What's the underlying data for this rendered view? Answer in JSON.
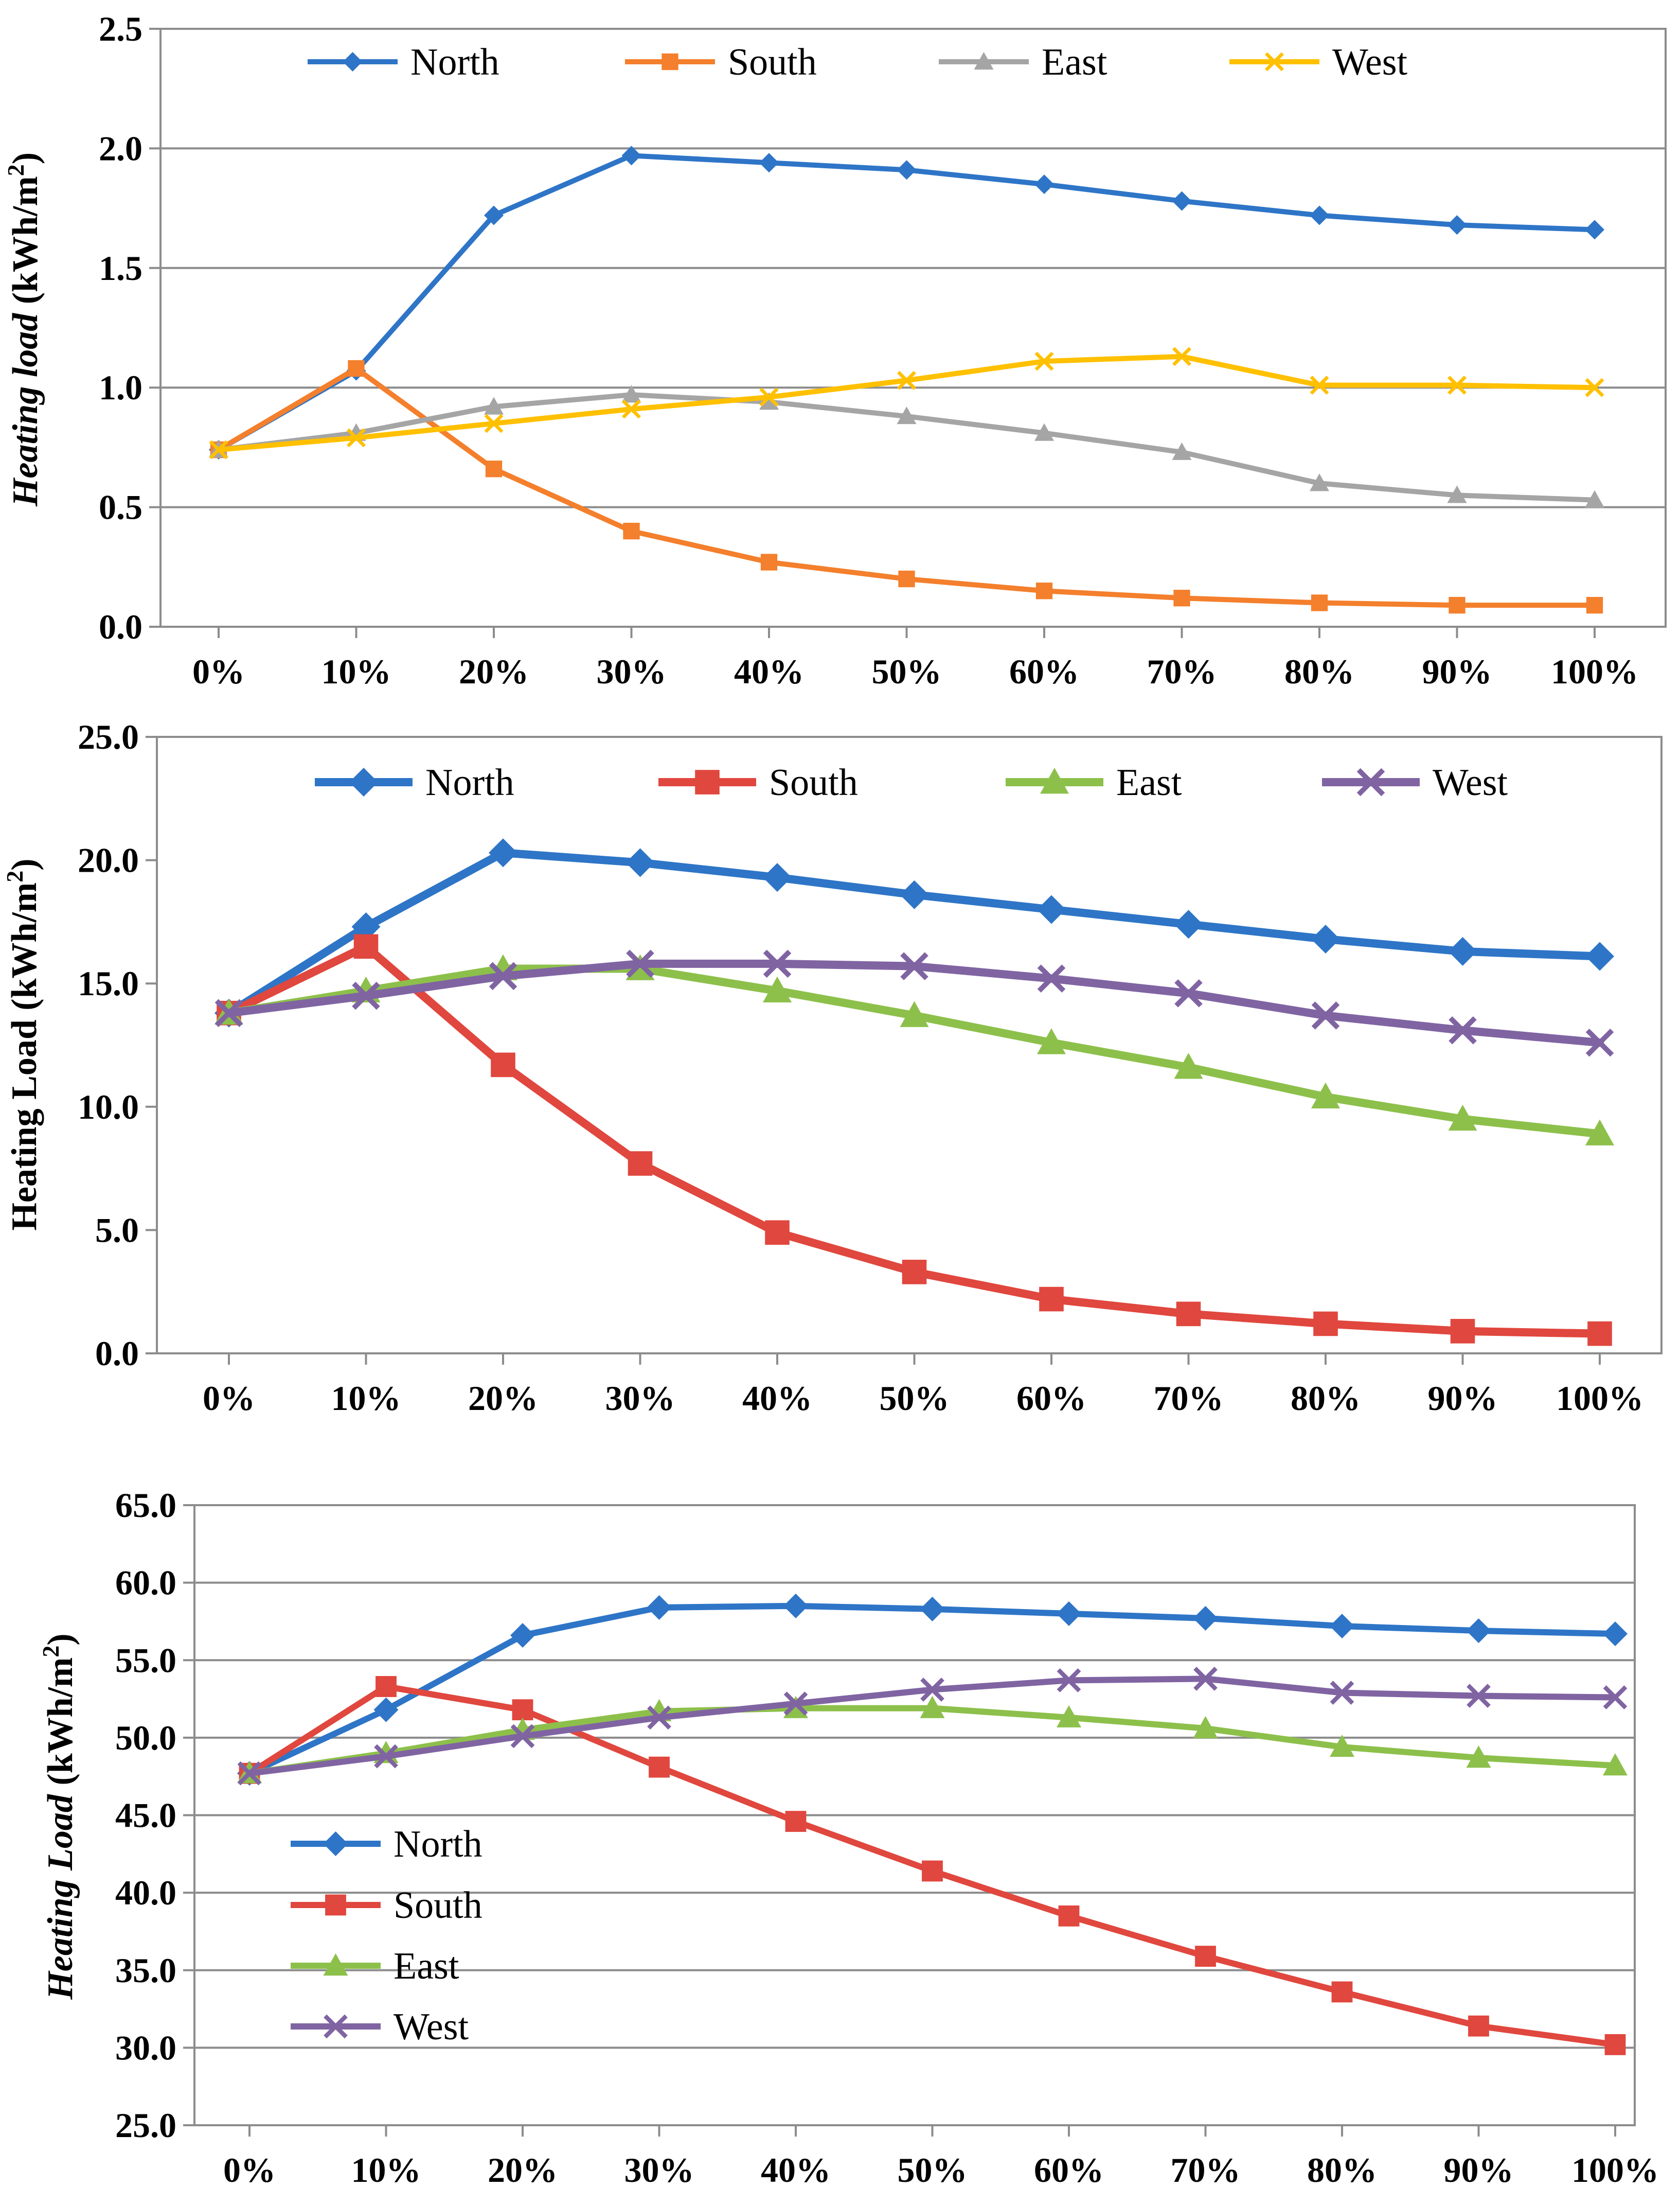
{
  "chart_data": [
    {
      "type": "line",
      "title": "",
      "xlabel": "",
      "ylabel": "Heating load (kWh/m²)",
      "ylabel_parts": {
        "italic": "Heating load",
        "unit": " (kWh/m",
        "sup": "2",
        "close": ")"
      },
      "ylim": [
        0,
        2.5
      ],
      "y_ticks": [
        "0.0",
        "0.5",
        "1.0",
        "1.5",
        "2.0",
        "2.5"
      ],
      "categories": [
        "0%",
        "10%",
        "20%",
        "30%",
        "40%",
        "50%",
        "60%",
        "70%",
        "80%",
        "90%",
        "100%"
      ],
      "grid": true,
      "legend": "top",
      "series": [
        {
          "name": "North",
          "color": "#2E75C7",
          "marker": "diamond",
          "values": [
            0.74,
            1.07,
            1.72,
            1.97,
            1.94,
            1.91,
            1.85,
            1.78,
            1.72,
            1.68,
            1.66
          ]
        },
        {
          "name": "South",
          "color": "#F47F2C",
          "marker": "square",
          "values": [
            0.74,
            1.08,
            0.66,
            0.4,
            0.27,
            0.2,
            0.15,
            0.12,
            0.1,
            0.09,
            0.09
          ]
        },
        {
          "name": "East",
          "color": "#A5A5A5",
          "marker": "triangle",
          "values": [
            0.74,
            0.81,
            0.92,
            0.97,
            0.94,
            0.88,
            0.81,
            0.73,
            0.6,
            0.55,
            0.53
          ]
        },
        {
          "name": "West",
          "color": "#FFC000",
          "marker": "x",
          "values": [
            0.74,
            0.79,
            0.85,
            0.91,
            0.96,
            1.03,
            1.11,
            1.13,
            1.01,
            1.01,
            1.0
          ]
        }
      ]
    },
    {
      "type": "line",
      "title": "",
      "xlabel": "",
      "ylabel": "Heating Load (kWh/m²)",
      "ylabel_parts": {
        "italic": "",
        "unit": "Heating Load (kWh/m",
        "sup": "2",
        "close": ")"
      },
      "ylim": [
        0,
        25
      ],
      "y_ticks": [
        "0.0",
        "5.0",
        "10.0",
        "15.0",
        "20.0",
        "25.0"
      ],
      "categories": [
        "0%",
        "10%",
        "20%",
        "30%",
        "40%",
        "50%",
        "60%",
        "70%",
        "80%",
        "90%",
        "100%"
      ],
      "grid": false,
      "legend": "top",
      "series": [
        {
          "name": "North",
          "color": "#2E75C7",
          "marker": "diamond",
          "values": [
            13.8,
            17.3,
            20.3,
            19.9,
            19.3,
            18.6,
            18.0,
            17.4,
            16.8,
            16.3,
            16.1
          ]
        },
        {
          "name": "South",
          "color": "#E0473E",
          "marker": "square",
          "values": [
            13.8,
            16.5,
            11.7,
            7.7,
            4.9,
            3.3,
            2.2,
            1.6,
            1.2,
            0.9,
            0.8
          ]
        },
        {
          "name": "East",
          "color": "#8DC04B",
          "marker": "triangle",
          "values": [
            13.8,
            14.7,
            15.6,
            15.6,
            14.7,
            13.7,
            12.6,
            11.6,
            10.4,
            9.5,
            8.9
          ]
        },
        {
          "name": "West",
          "color": "#8064A2",
          "marker": "x",
          "values": [
            13.8,
            14.5,
            15.3,
            15.8,
            15.8,
            15.7,
            15.2,
            14.6,
            13.7,
            13.1,
            12.6
          ]
        }
      ]
    },
    {
      "type": "line",
      "title": "",
      "xlabel": "",
      "ylabel": "Heating Load (kWh/m²)",
      "ylabel_parts": {
        "italic": "Heating Load",
        "unit": " (kWh/m",
        "sup": "2",
        "close": ")"
      },
      "ylim": [
        25,
        65
      ],
      "y_ticks": [
        "25.0",
        "30.0",
        "35.0",
        "40.0",
        "45.0",
        "50.0",
        "55.0",
        "60.0",
        "65.0"
      ],
      "categories": [
        "0%",
        "10%",
        "20%",
        "30%",
        "40%",
        "50%",
        "60%",
        "70%",
        "80%",
        "90%",
        "100%"
      ],
      "grid": true,
      "legend": "left",
      "series": [
        {
          "name": "North",
          "color": "#2E75C7",
          "marker": "diamond",
          "values": [
            47.7,
            51.8,
            56.6,
            58.4,
            58.5,
            58.3,
            58.0,
            57.7,
            57.2,
            56.9,
            56.7
          ]
        },
        {
          "name": "South",
          "color": "#E0473E",
          "marker": "square",
          "values": [
            47.7,
            53.3,
            51.8,
            48.1,
            44.6,
            41.4,
            38.5,
            35.9,
            33.6,
            31.4,
            30.2
          ]
        },
        {
          "name": "East",
          "color": "#8DC04B",
          "marker": "triangle",
          "values": [
            47.7,
            49.0,
            50.5,
            51.7,
            51.9,
            51.9,
            51.3,
            50.6,
            49.4,
            48.7,
            48.2
          ]
        },
        {
          "name": "West",
          "color": "#8064A2",
          "marker": "x",
          "values": [
            47.7,
            48.8,
            50.1,
            51.3,
            52.2,
            53.1,
            53.7,
            53.8,
            52.9,
            52.7,
            52.6
          ]
        }
      ]
    }
  ]
}
